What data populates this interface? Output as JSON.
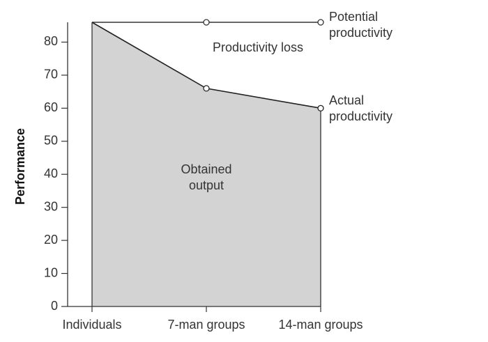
{
  "chart_data": {
    "type": "area",
    "y_label": "Performance",
    "categories": [
      "Individuals",
      "7-man groups",
      "14-man groups"
    ],
    "series": [
      {
        "name": "Potential productivity",
        "color": "#333333",
        "values": [
          86,
          86,
          86
        ]
      },
      {
        "name": "Actual productivity",
        "color": "#222222",
        "fill": "#d3d3d3",
        "values": [
          86,
          66,
          60
        ]
      }
    ],
    "annotations": [
      "Productivity loss",
      "Obtained output"
    ],
    "ylim": [
      0,
      86
    ],
    "yticks": [
      0,
      10,
      20,
      30,
      40,
      50,
      60,
      70,
      80
    ],
    "grid": false
  }
}
